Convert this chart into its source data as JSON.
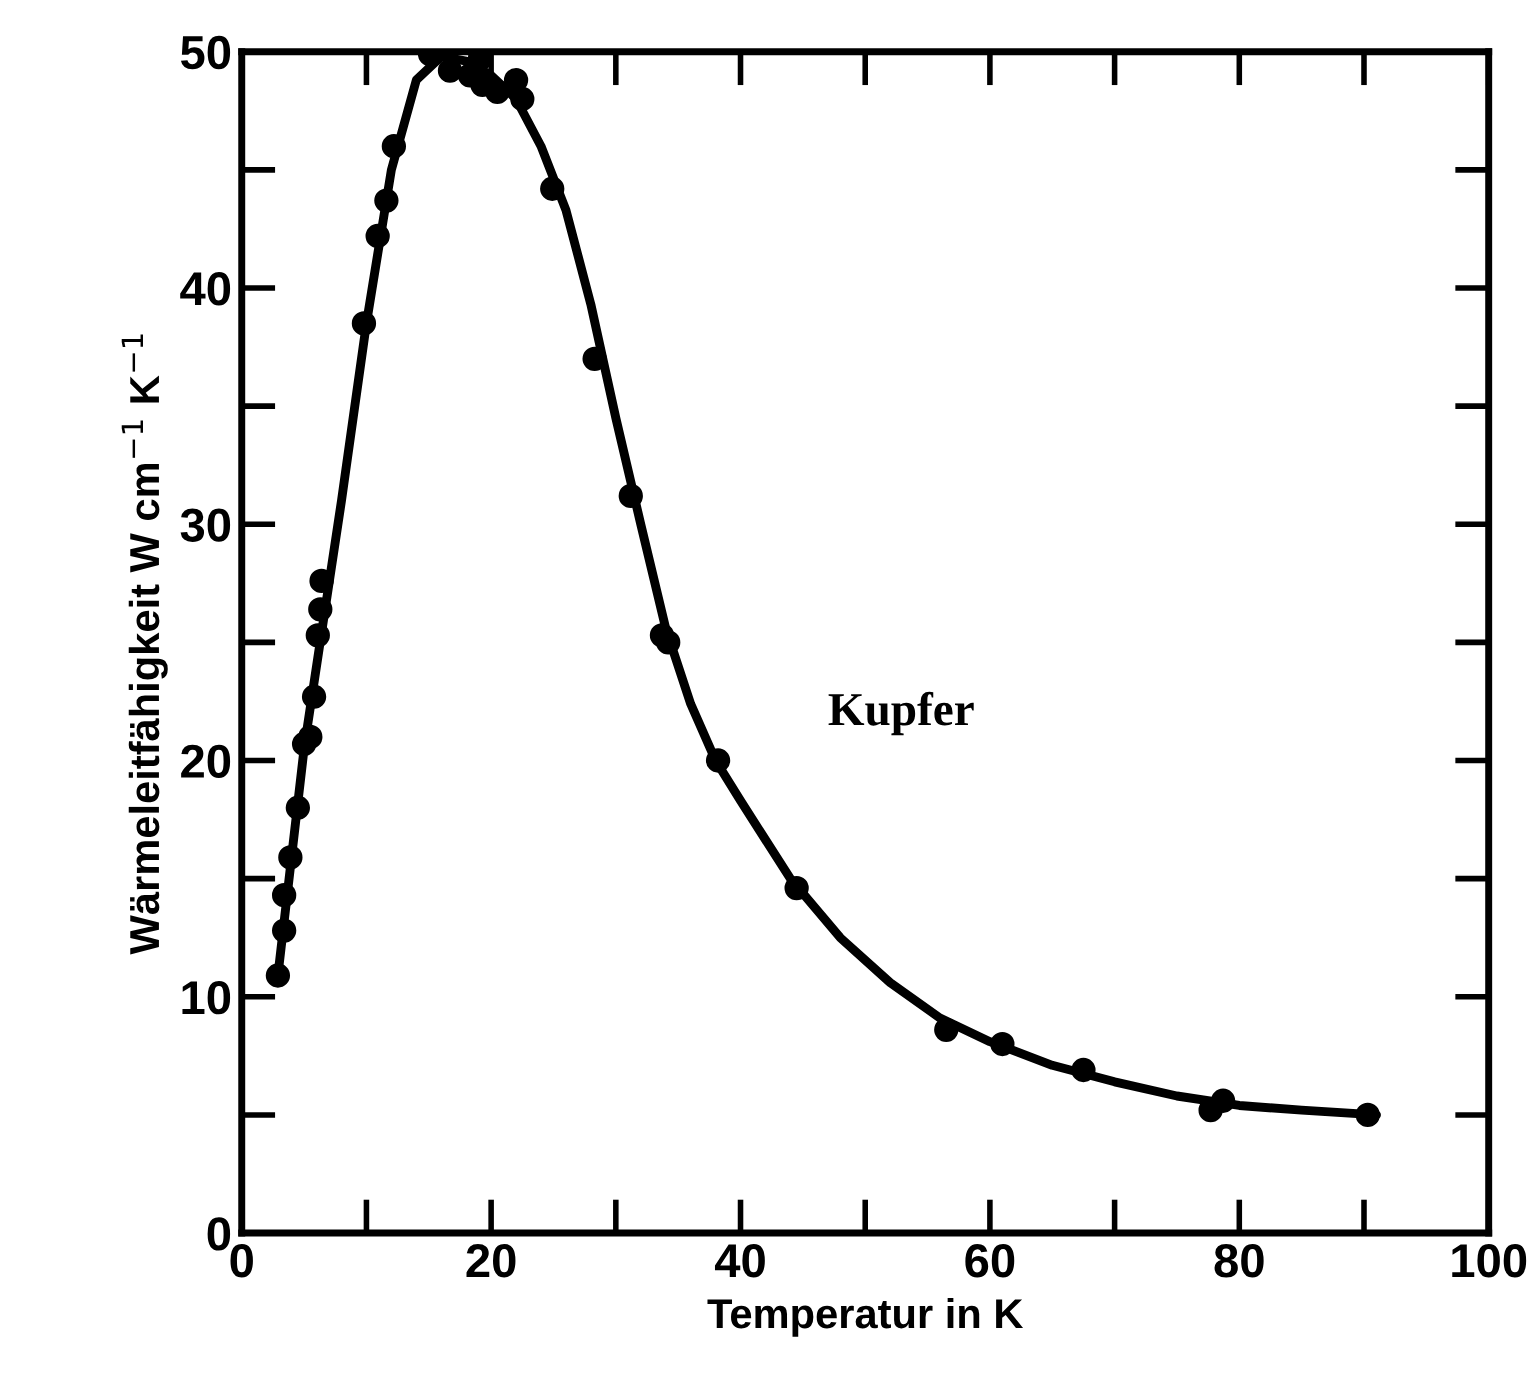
{
  "chart_data": {
    "type": "scatter",
    "xlabel": "Temperatur in K",
    "ylabel": "Wärmeleitfähigkeit W cm$^{−1}$ K$^{−1}$",
    "annotations": [
      "Kupfer"
    ],
    "xlim": [
      0,
      100
    ],
    "ylim": [
      0,
      50
    ],
    "xticks": [
      0,
      20,
      40,
      60,
      80,
      100
    ],
    "yticks": [
      0,
      10,
      20,
      30,
      40,
      50
    ],
    "grid": false,
    "legend": false,
    "series": [
      {
        "type": "line",
        "color": "#000000",
        "marker": "none",
        "line_style": "solid",
        "x": [
          2.9,
          5,
          8,
          10,
          12,
          14,
          16,
          18,
          20,
          22,
          24,
          26,
          28,
          30,
          32,
          34,
          36,
          38,
          40,
          44,
          48,
          52,
          56,
          60,
          65,
          70,
          75,
          80,
          85,
          91
        ],
        "values": [
          10.9,
          20.5,
          31,
          38.5,
          45,
          48.8,
          49.8,
          49.6,
          49,
          48,
          46,
          43.3,
          39.3,
          34.5,
          30,
          25.6,
          22.4,
          20,
          18.3,
          15,
          12.5,
          10.6,
          9.1,
          8.1,
          7.1,
          6.4,
          5.8,
          5.4,
          5.2,
          5.0
        ]
      },
      {
        "color": "#000000",
        "marker": "circle",
        "x": [
          2.9,
          3.4,
          3.4,
          3.9,
          4.5,
          5,
          5.5,
          5.8,
          6.1,
          6.3,
          6.4,
          9.8,
          10.9,
          11.6,
          12.2,
          15.1,
          16.7,
          18.3,
          19.1,
          19.3,
          20.5,
          22,
          22.5,
          24.9,
          28.3,
          31.2,
          33.7,
          34.2,
          38.2,
          44.5,
          56.5,
          61,
          67.5,
          77.7,
          78.7,
          90.3
        ],
        "values": [
          10.9,
          12.8,
          14.3,
          15.9,
          18,
          20.7,
          21,
          22.7,
          25.3,
          26.4,
          27.6,
          38.5,
          42.2,
          43.7,
          46,
          49.9,
          49.2,
          49,
          49.7,
          48.6,
          48.3,
          48.8,
          48,
          44.2,
          37,
          31.2,
          25.3,
          25,
          20,
          14.6,
          8.6,
          8,
          6.9,
          5.2,
          5.6,
          5
        ]
      }
    ]
  }
}
